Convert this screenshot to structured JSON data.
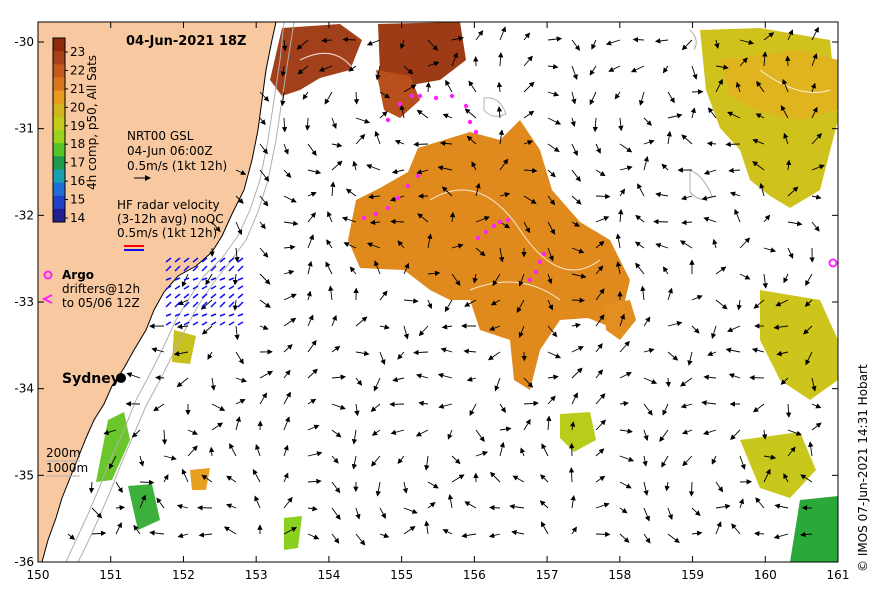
{
  "title": "04-Jun-2021 18Z",
  "colorbar": {
    "label": "4h comp, p50, All Sats",
    "ticks": [
      "23",
      "22",
      "21",
      "20",
      "19",
      "18",
      "17",
      "16",
      "15",
      "14"
    ],
    "colors": [
      "#8b2a0c",
      "#a8401a",
      "#c25a1e",
      "#d8761d",
      "#e89a20",
      "#d2b51c",
      "#c4cc1a",
      "#9ad21e",
      "#52c428",
      "#1f9a4a",
      "#1aa0b0",
      "#1f6fd6",
      "#2040c8",
      "#202090"
    ]
  },
  "gsl": {
    "line1": "NRT00 GSL",
    "line2": "04-Jun 06:00Z",
    "line3": "0.5m/s (1kt 12h)"
  },
  "radar": {
    "line1": "HF radar velocity",
    "line2": "(3-12h avg) noQC",
    "line3": "0.5m/s (1kt 12h)"
  },
  "argo": {
    "label": "Argo"
  },
  "drifters": {
    "line1": "drifters@12h",
    "line2": "to 05/06 12Z"
  },
  "city": {
    "name": "Sydney"
  },
  "depth": {
    "line1": "200m",
    "line2": "1000m"
  },
  "lon_ticks": [
    "150",
    "151",
    "152",
    "153",
    "154",
    "155",
    "156",
    "157",
    "158",
    "159",
    "160",
    "161"
  ],
  "lat_ticks": [
    "-30",
    "-31",
    "-32",
    "-33",
    "-34",
    "-35",
    "-36"
  ],
  "credit": "© IMOS 07-Jun-2021 14:31 Hobart",
  "colors": {
    "land": "#f8c9a0",
    "argo": "#ff22ff",
    "radar": "#1010ee",
    "coast": "#000000",
    "contour": "#b0b0b0"
  }
}
